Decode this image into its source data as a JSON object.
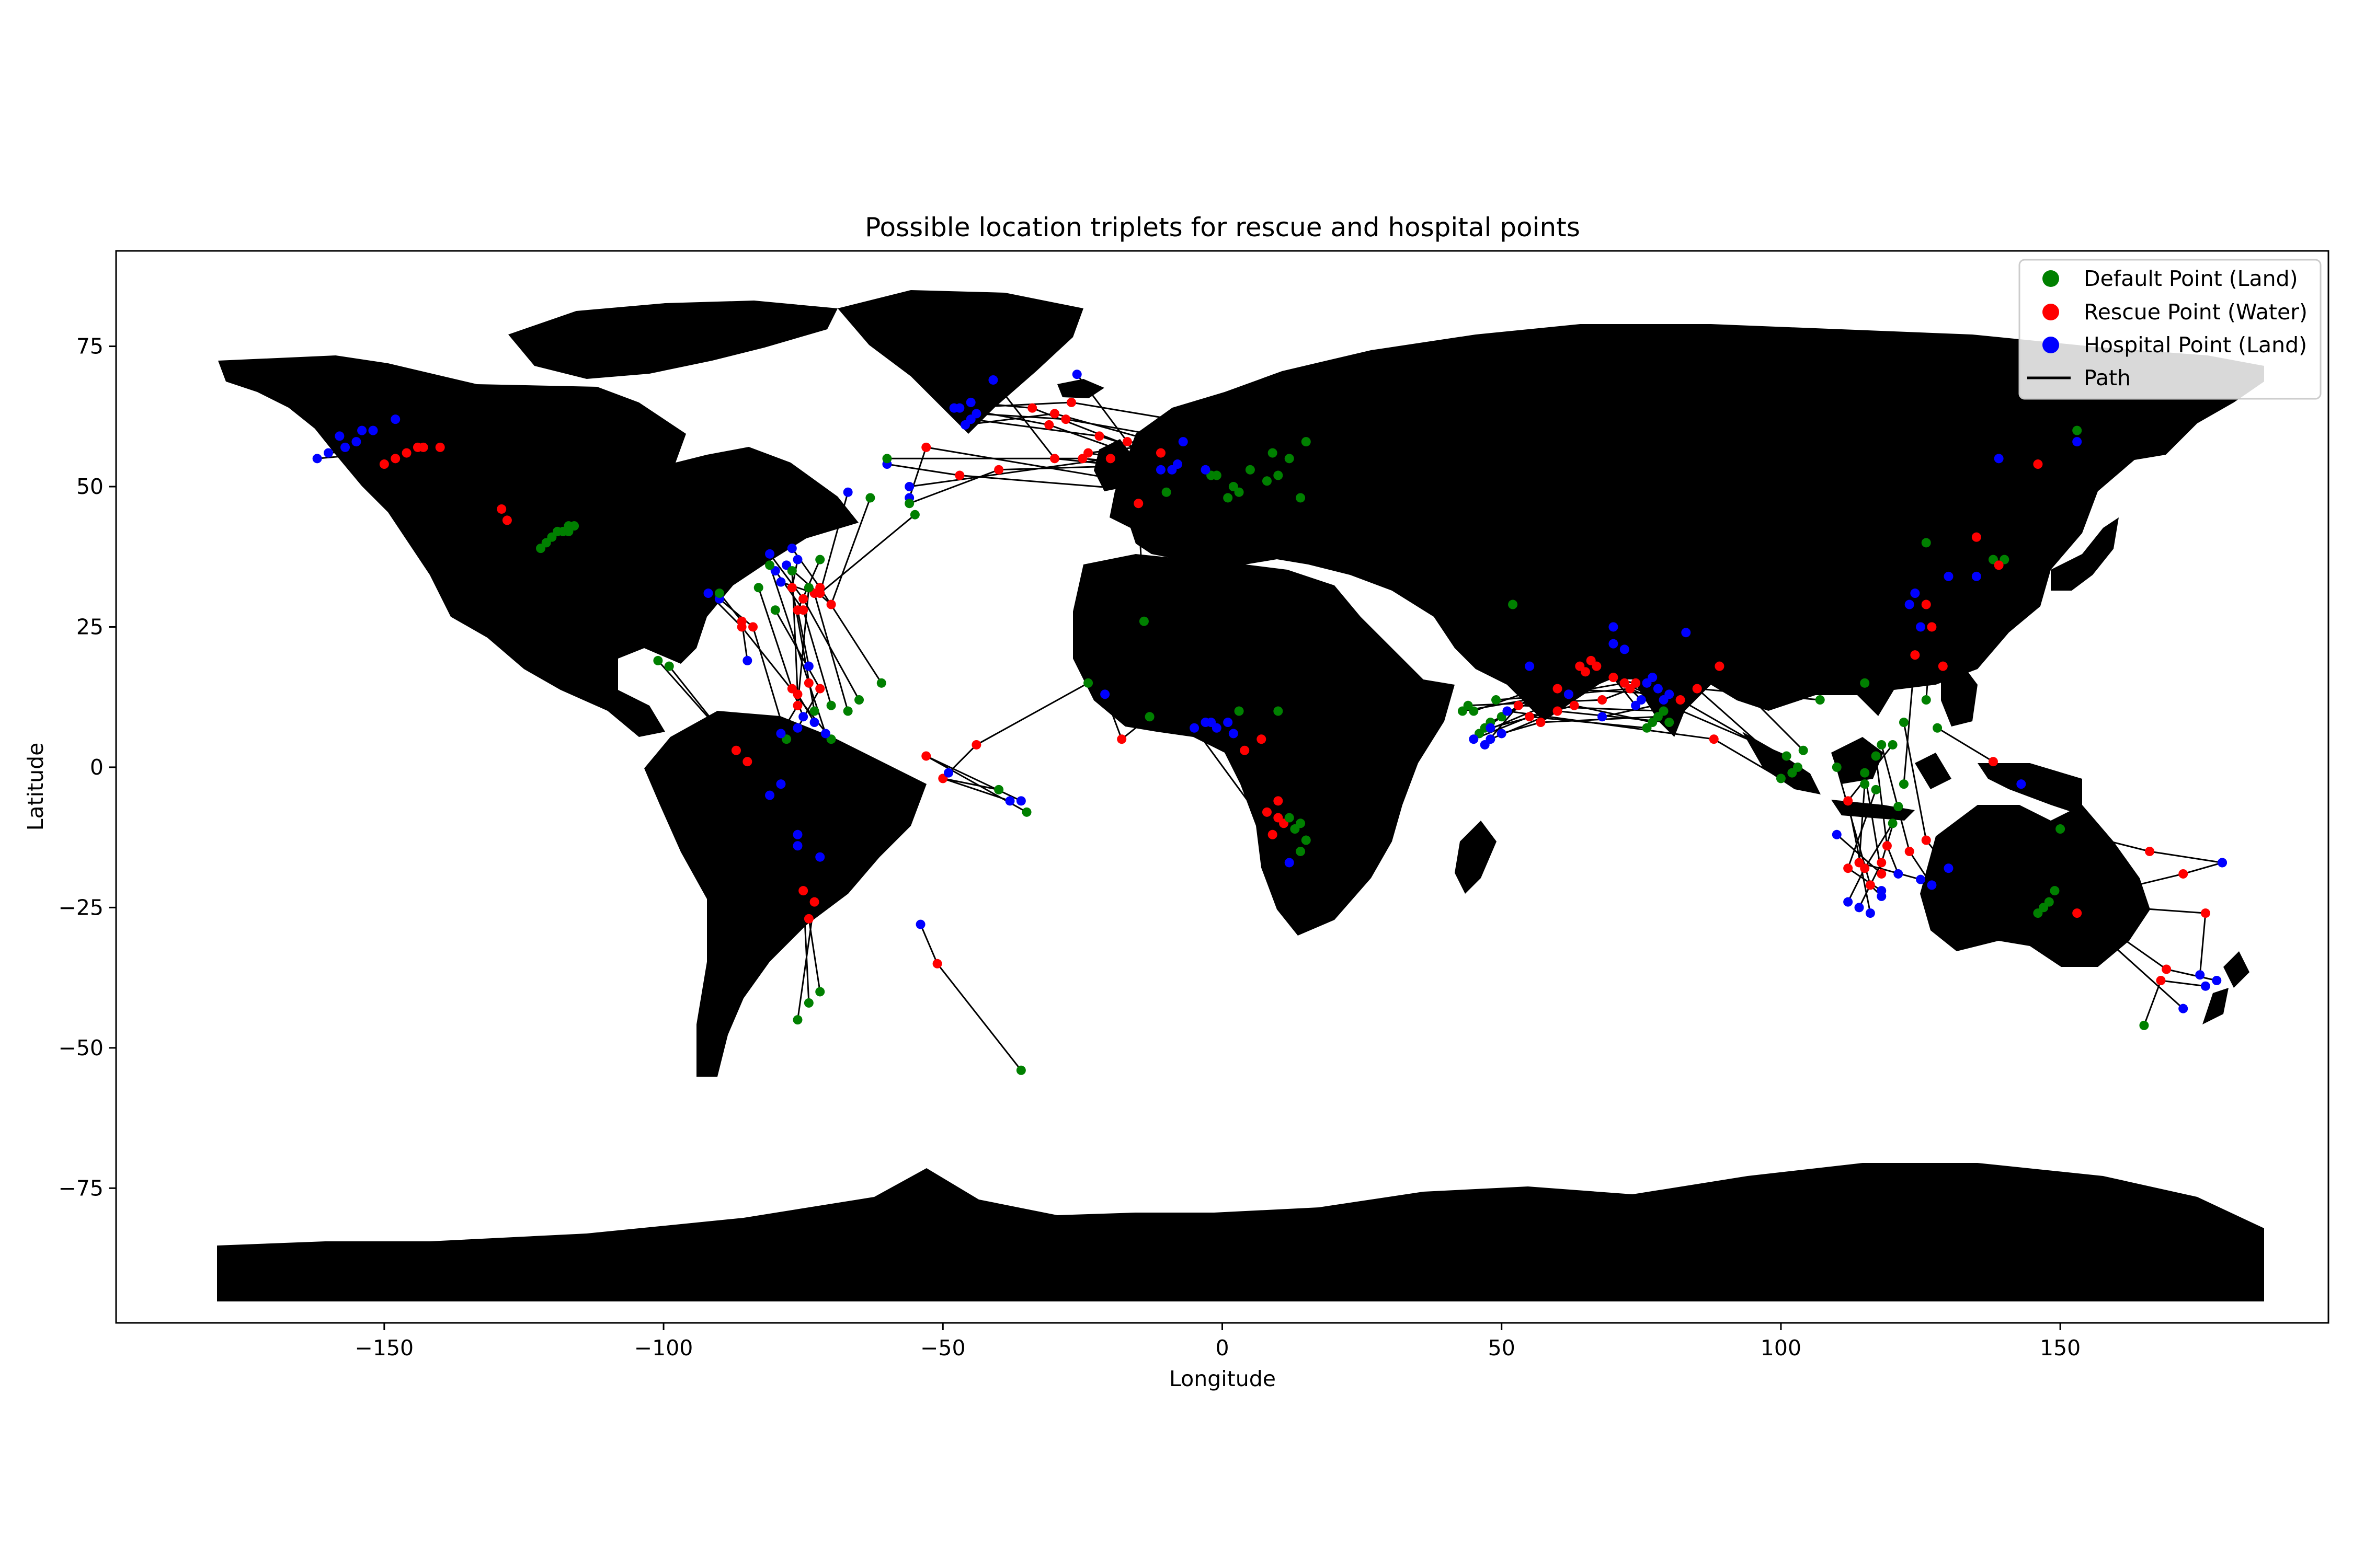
{
  "chart_data": {
    "type": "scatter",
    "title": "Possible location triplets for rescue and hospital points",
    "xlabel": "Longitude",
    "ylabel": "Latitude",
    "xlim": [
      -198,
      198
    ],
    "ylim": [
      -99,
      92
    ],
    "x_ticks": [
      {
        "value": -150,
        "label": "−150"
      },
      {
        "value": -100,
        "label": "−100"
      },
      {
        "value": -50,
        "label": "−50"
      },
      {
        "value": 0,
        "label": "0"
      },
      {
        "value": 50,
        "label": "50"
      },
      {
        "value": 100,
        "label": "100"
      },
      {
        "value": 150,
        "label": "150"
      }
    ],
    "y_ticks": [
      {
        "value": -75,
        "label": "−75"
      },
      {
        "value": -50,
        "label": "−50"
      },
      {
        "value": -25,
        "label": "−25"
      },
      {
        "value": 0,
        "label": "0"
      },
      {
        "value": 25,
        "label": "25"
      },
      {
        "value": 50,
        "label": "50"
      },
      {
        "value": 75,
        "label": "75"
      }
    ],
    "grid": false,
    "legend_position": "top-right",
    "land_color": "#d3d3d3",
    "path_color": "#000000",
    "series": [
      {
        "name": "Default Point (Land)",
        "color": "#008000",
        "marker": "circle"
      },
      {
        "name": "Rescue Point (Water)",
        "color": "#ff0000",
        "marker": "circle"
      },
      {
        "name": "Hospital Point (Land)",
        "color": "#0000ff",
        "marker": "circle"
      },
      {
        "name": "Path",
        "color": "#000000",
        "marker": "line"
      }
    ],
    "triplets": [
      [
        [
          -117,
          42
        ],
        [
          -143,
          57
        ],
        [
          -158,
          59
        ]
      ],
      [
        [
          -119,
          42
        ],
        [
          -146,
          56
        ],
        [
          -155,
          58
        ]
      ],
      [
        [
          -116,
          43
        ],
        [
          -148,
          55
        ],
        [
          -152,
          60
        ]
      ],
      [
        [
          -121,
          40
        ],
        [
          -144,
          57
        ],
        [
          -160,
          56
        ]
      ],
      [
        [
          -120,
          41
        ],
        [
          -150,
          54
        ],
        [
          -157,
          57
        ]
      ],
      [
        [
          -122,
          39
        ],
        [
          -129,
          46
        ],
        [
          -148,
          62
        ]
      ],
      [
        [
          -118,
          42
        ],
        [
          -128,
          44
        ],
        [
          -154,
          60
        ]
      ],
      [
        [
          -117,
          43
        ],
        [
          -140,
          57
        ],
        [
          -162,
          55
        ]
      ],
      [
        [
          15,
          58
        ],
        [
          -27,
          65
        ],
        [
          -48,
          64
        ]
      ],
      [
        [
          14,
          48
        ],
        [
          -22,
          59
        ],
        [
          -45,
          62
        ]
      ],
      [
        [
          12,
          55
        ],
        [
          -28,
          62
        ],
        [
          -44,
          63
        ]
      ],
      [
        [
          10,
          52
        ],
        [
          -30,
          63
        ],
        [
          -46,
          61
        ]
      ],
      [
        [
          3,
          49
        ],
        [
          -31,
          61
        ],
        [
          -47,
          64
        ]
      ],
      [
        [
          9,
          56
        ],
        [
          -17,
          58
        ],
        [
          -26,
          70
        ]
      ],
      [
        [
          2,
          50
        ],
        [
          -34,
          64
        ],
        [
          -45,
          65
        ]
      ],
      [
        [
          -1,
          52
        ],
        [
          -24,
          56
        ],
        [
          -7,
          58
        ]
      ],
      [
        [
          -10,
          49
        ],
        [
          -47,
          52
        ],
        [
          -60,
          54
        ]
      ],
      [
        [
          5,
          53
        ],
        [
          -20,
          55
        ],
        [
          -56,
          50
        ]
      ],
      [
        [
          1,
          48
        ],
        [
          -53,
          57
        ],
        [
          -56,
          48
        ]
      ],
      [
        [
          8,
          51
        ],
        [
          -30,
          55
        ],
        [
          -41,
          69
        ]
      ],
      [
        [
          -2,
          52
        ],
        [
          -11,
          56
        ],
        [
          -9,
          53
        ]
      ],
      [
        [
          -56,
          47
        ],
        [
          -40,
          53
        ],
        [
          -8,
          54
        ]
      ],
      [
        [
          -60,
          55
        ],
        [
          -25,
          55
        ],
        [
          -3,
          53
        ]
      ],
      [
        [
          -65,
          12
        ],
        [
          -75,
          30
        ],
        [
          -81,
          38
        ]
      ],
      [
        [
          -73,
          10
        ],
        [
          -77,
          32
        ],
        [
          -76,
          37
        ]
      ],
      [
        [
          -63,
          48
        ],
        [
          -70,
          29
        ],
        [
          -78,
          36
        ]
      ],
      [
        [
          -67,
          10
        ],
        [
          -73,
          31
        ],
        [
          -79,
          33
        ]
      ],
      [
        [
          -70,
          11
        ],
        [
          -75,
          28
        ],
        [
          -80,
          35
        ]
      ],
      [
        [
          -61,
          15
        ],
        [
          -72,
          32
        ],
        [
          -77,
          39
        ]
      ],
      [
        [
          -55,
          45
        ],
        [
          -72,
          31
        ],
        [
          -67,
          49
        ]
      ],
      [
        [
          -78,
          5
        ],
        [
          -84,
          25
        ],
        [
          -90,
          30
        ]
      ],
      [
        [
          -70,
          5
        ],
        [
          -86,
          25
        ],
        [
          -92,
          31
        ]
      ],
      [
        [
          -80,
          28
        ],
        [
          -72,
          14
        ],
        [
          -76,
          7
        ]
      ],
      [
        [
          -77,
          35
        ],
        [
          -76,
          13
        ],
        [
          -73,
          8
        ]
      ],
      [
        [
          -81,
          36
        ],
        [
          -74,
          15
        ],
        [
          -71,
          6
        ]
      ],
      [
        [
          -83,
          32
        ],
        [
          -77,
          14
        ],
        [
          -75,
          9
        ]
      ],
      [
        [
          -74,
          32
        ],
        [
          -76,
          11
        ],
        [
          -79,
          6
        ]
      ],
      [
        [
          -90,
          31
        ],
        [
          -86,
          26
        ],
        [
          -85,
          19
        ]
      ],
      [
        [
          -99,
          18
        ],
        [
          -87,
          3
        ],
        [
          -81,
          -5
        ]
      ],
      [
        [
          -101,
          19
        ],
        [
          -85,
          1
        ],
        [
          -79,
          -3
        ]
      ],
      [
        [
          -72,
          37
        ],
        [
          -76,
          28
        ],
        [
          -74,
          18
        ]
      ],
      [
        [
          -74,
          -42
        ],
        [
          -75,
          -22
        ],
        [
          -76,
          -12
        ]
      ],
      [
        [
          -76,
          -45
        ],
        [
          -73,
          -24
        ],
        [
          -72,
          -16
        ]
      ],
      [
        [
          -72,
          -40
        ],
        [
          -74,
          -27
        ],
        [
          -76,
          -14
        ]
      ],
      [
        [
          -35,
          -8
        ],
        [
          -53,
          2
        ],
        [
          -36,
          -6
        ]
      ],
      [
        [
          -40,
          -4
        ],
        [
          -50,
          -2
        ],
        [
          -38,
          -6
        ]
      ],
      [
        [
          -36,
          -54
        ],
        [
          -51,
          -35
        ],
        [
          -54,
          -28
        ]
      ],
      [
        [
          -24,
          15
        ],
        [
          -44,
          4
        ],
        [
          -49,
          -1
        ]
      ],
      [
        [
          14,
          -10
        ],
        [
          10,
          -6
        ],
        [
          1,
          8
        ]
      ],
      [
        [
          15,
          -13
        ],
        [
          11,
          -10
        ],
        [
          -1,
          7
        ]
      ],
      [
        [
          13,
          -11
        ],
        [
          8,
          -8
        ],
        [
          -3,
          8
        ]
      ],
      [
        [
          12,
          -9
        ],
        [
          9,
          -12
        ],
        [
          -5,
          7
        ]
      ],
      [
        [
          14,
          -15
        ],
        [
          10,
          -9
        ],
        [
          2,
          6
        ]
      ],
      [
        [
          10,
          10
        ],
        [
          4,
          3
        ],
        [
          -2,
          8
        ]
      ],
      [
        [
          3,
          10
        ],
        [
          7,
          5
        ],
        [
          12,
          -17
        ]
      ],
      [
        [
          -13,
          9
        ],
        [
          -18,
          5
        ],
        [
          -21,
          13
        ]
      ],
      [
        [
          -14,
          26
        ],
        [
          -15,
          47
        ],
        [
          -11,
          53
        ]
      ],
      [
        [
          45,
          10
        ],
        [
          65,
          17
        ],
        [
          78,
          14
        ]
      ],
      [
        [
          48,
          8
        ],
        [
          60,
          14
        ],
        [
          80,
          13
        ]
      ],
      [
        [
          44,
          11
        ],
        [
          68,
          12
        ],
        [
          76,
          15
        ]
      ],
      [
        [
          46,
          6
        ],
        [
          70,
          16
        ],
        [
          74,
          11
        ]
      ],
      [
        [
          50,
          9
        ],
        [
          66,
          19
        ],
        [
          77,
          16
        ]
      ],
      [
        [
          43,
          10
        ],
        [
          72,
          15
        ],
        [
          75,
          12
        ]
      ],
      [
        [
          47,
          7
        ],
        [
          64,
          18
        ],
        [
          79,
          12
        ]
      ],
      [
        [
          49,
          12
        ],
        [
          62,
          13
        ],
        [
          70,
          25
        ]
      ],
      [
        [
          52,
          29
        ],
        [
          67,
          18
        ],
        [
          83,
          24
        ]
      ],
      [
        [
          80,
          8
        ],
        [
          60,
          10
        ],
        [
          48,
          5
        ]
      ],
      [
        [
          78,
          9
        ],
        [
          57,
          8
        ],
        [
          50,
          6
        ]
      ],
      [
        [
          76,
          7
        ],
        [
          55,
          9
        ],
        [
          45,
          5
        ]
      ],
      [
        [
          79,
          10
        ],
        [
          53,
          11
        ],
        [
          47,
          4
        ]
      ],
      [
        [
          77,
          8
        ],
        [
          63,
          11
        ],
        [
          48,
          7
        ]
      ],
      [
        [
          102,
          -1
        ],
        [
          85,
          14
        ],
        [
          70,
          22
        ]
      ],
      [
        [
          104,
          3
        ],
        [
          89,
          18
        ],
        [
          72,
          21
        ]
      ],
      [
        [
          101,
          2
        ],
        [
          73,
          14
        ],
        [
          62,
          13
        ]
      ],
      [
        [
          103,
          0
        ],
        [
          82,
          12
        ],
        [
          68,
          9
        ]
      ],
      [
        [
          107,
          12
        ],
        [
          74,
          15
        ],
        [
          55,
          18
        ]
      ],
      [
        [
          100,
          -2
        ],
        [
          88,
          5
        ],
        [
          51,
          10
        ]
      ],
      [
        [
          120,
          -10
        ],
        [
          115,
          -18
        ],
        [
          112,
          -24
        ]
      ],
      [
        [
          121,
          -7
        ],
        [
          118,
          -17
        ],
        [
          114,
          -25
        ]
      ],
      [
        [
          117,
          -4
        ],
        [
          112,
          -18
        ],
        [
          118,
          -22
        ]
      ],
      [
        [
          115,
          -3
        ],
        [
          114,
          -17
        ],
        [
          125,
          -20
        ]
      ],
      [
        [
          117,
          2
        ],
        [
          119,
          -14
        ],
        [
          121,
          -19
        ]
      ],
      [
        [
          122,
          8
        ],
        [
          126,
          -13
        ],
        [
          130,
          -18
        ]
      ],
      [
        [
          110,
          0
        ],
        [
          116,
          -21
        ],
        [
          118,
          -23
        ]
      ],
      [
        [
          118,
          4
        ],
        [
          123,
          -15
        ],
        [
          127,
          -21
        ]
      ],
      [
        [
          115,
          -1
        ],
        [
          118,
          -19
        ],
        [
          110,
          -12
        ]
      ],
      [
        [
          122,
          -3
        ],
        [
          124,
          20
        ],
        [
          125,
          25
        ]
      ],
      [
        [
          126,
          12
        ],
        [
          127,
          25
        ],
        [
          123,
          29
        ]
      ],
      [
        [
          120,
          4
        ],
        [
          112,
          -6
        ],
        [
          116,
          -26
        ]
      ],
      [
        [
          126,
          40
        ],
        [
          135,
          41
        ],
        [
          139,
          55
        ]
      ],
      [
        [
          140,
          37
        ],
        [
          129,
          18
        ],
        [
          124,
          31
        ]
      ],
      [
        [
          138,
          37
        ],
        [
          146,
          54
        ],
        [
          153,
          58
        ]
      ],
      [
        [
          128,
          7
        ],
        [
          138,
          1
        ],
        [
          143,
          -3
        ]
      ],
      [
        [
          153,
          60
        ],
        [
          139,
          36
        ],
        [
          135,
          34
        ]
      ],
      [
        [
          115,
          15
        ],
        [
          126,
          29
        ],
        [
          130,
          34
        ]
      ],
      [
        [
          150,
          -11
        ],
        [
          166,
          -15
        ],
        [
          179,
          -17
        ]
      ],
      [
        [
          165,
          -46
        ],
        [
          168,
          -38
        ],
        [
          176,
          -39
        ]
      ],
      [
        [
          148,
          -24
        ],
        [
          176,
          -26
        ],
        [
          175,
          -37
        ]
      ],
      [
        [
          146,
          -26
        ],
        [
          153,
          -26
        ],
        [
          172,
          -43
        ]
      ],
      [
        [
          149,
          -22
        ],
        [
          169,
          -36
        ],
        [
          178,
          -38
        ]
      ],
      [
        [
          147,
          -25
        ],
        [
          172,
          -19
        ],
        [
          179,
          -17
        ]
      ]
    ]
  },
  "legend": {
    "default_label": "Default Point (Land)",
    "rescue_label": "Rescue Point (Water)",
    "hospital_label": "Hospital Point (Land)",
    "path_label": "Path"
  }
}
